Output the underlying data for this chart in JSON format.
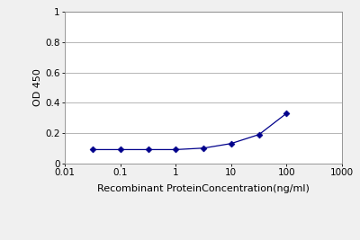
{
  "x_values": [
    0.032,
    0.1,
    0.32,
    1.0,
    3.2,
    10.0,
    32.0,
    100.0
  ],
  "y_values": [
    0.09,
    0.09,
    0.09,
    0.09,
    0.1,
    0.13,
    0.19,
    0.33
  ],
  "xlabel": "Recombinant ProteinConcentration(ng/ml)",
  "ylabel": "OD 450",
  "xlim": [
    0.01,
    1000
  ],
  "ylim": [
    0,
    1.0
  ],
  "yticks": [
    0,
    0.2,
    0.4,
    0.6,
    0.8,
    1
  ],
  "xtick_labels": [
    "0.01",
    "0.1",
    "1",
    "10",
    "100",
    "1000"
  ],
  "xtick_positions": [
    0.01,
    0.1,
    1,
    10,
    100,
    1000
  ],
  "line_color": "#00008B",
  "marker": "D",
  "marker_size": 3.5,
  "line_width": 0.9,
  "background_color": "#f0f0f0",
  "plot_bg_color": "#ffffff",
  "grid_color": "#aaaaaa",
  "xlabel_fontsize": 8,
  "ylabel_fontsize": 8,
  "tick_fontsize": 7.5
}
